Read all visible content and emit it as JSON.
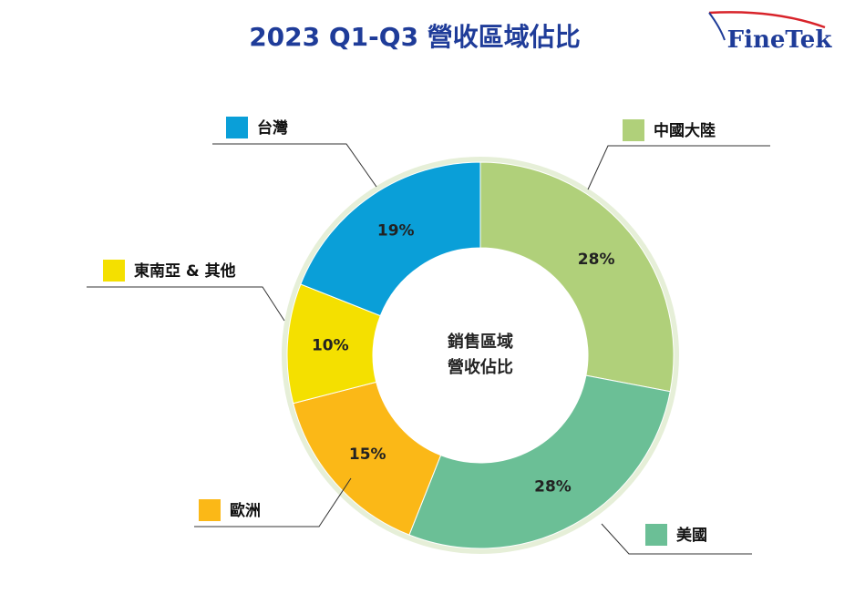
{
  "chart_data": {
    "type": "donut",
    "title": "2023 Q1-Q3 營收區域佔比",
    "logo": "FineTek",
    "center_label": [
      "銷售區域",
      "營收佔比"
    ],
    "categories": [
      "中國大陸",
      "美國",
      "歐洲",
      "東南亞 & 其他",
      "台灣"
    ],
    "values": [
      28,
      28,
      15,
      10,
      19
    ],
    "value_labels": [
      "28%",
      "28%",
      "15%",
      "10%",
      "19%"
    ],
    "colors": [
      "#b0d07a",
      "#6bbf96",
      "#fbb817",
      "#f4e000",
      "#0a9fd8"
    ]
  }
}
